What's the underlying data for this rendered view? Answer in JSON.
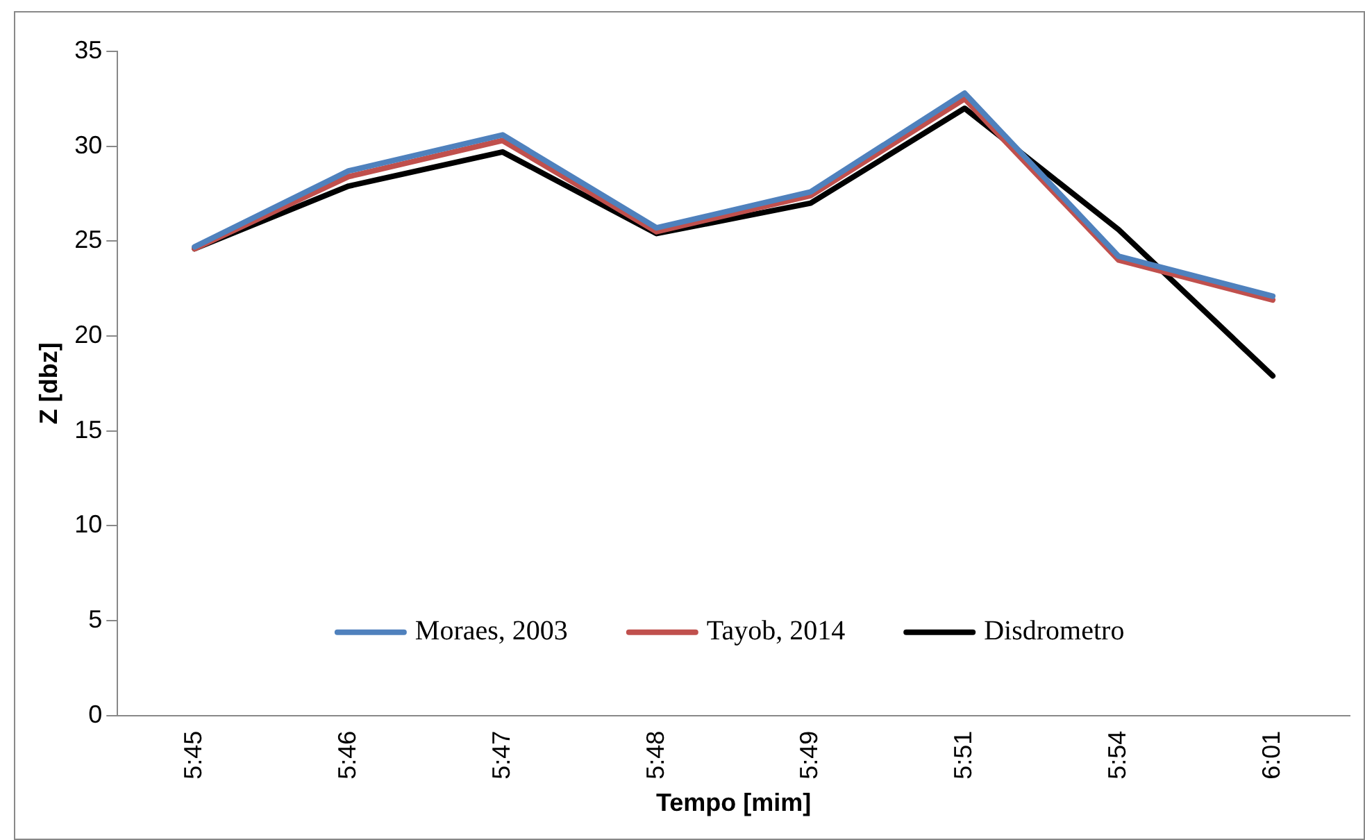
{
  "chart_data": {
    "type": "line",
    "xlabel": "Tempo [mim]",
    "ylabel": "Z [dbz]",
    "categories": [
      "5:45",
      "5:46",
      "5:47",
      "5:48",
      "5:49",
      "5:51",
      "5:54",
      "6:01"
    ],
    "series": [
      {
        "name": "Moraes, 2003",
        "color": "#4f81bd",
        "values": [
          24.7,
          28.7,
          30.6,
          25.7,
          27.6,
          32.8,
          24.2,
          22.1
        ]
      },
      {
        "name": "Tayob, 2014",
        "color": "#c0504d",
        "values": [
          24.6,
          28.4,
          30.3,
          25.5,
          27.4,
          32.5,
          24.0,
          21.9
        ]
      },
      {
        "name": "Disdrometro",
        "color": "#000000",
        "values": [
          24.6,
          27.9,
          29.7,
          25.4,
          27.0,
          32.0,
          25.6,
          17.9
        ]
      }
    ],
    "ylim": [
      0,
      35
    ],
    "yticks": [
      0,
      5,
      10,
      15,
      20,
      25,
      30,
      35
    ],
    "grid": false,
    "legend": "bottom",
    "marker": "none",
    "line_style": "solid"
  }
}
